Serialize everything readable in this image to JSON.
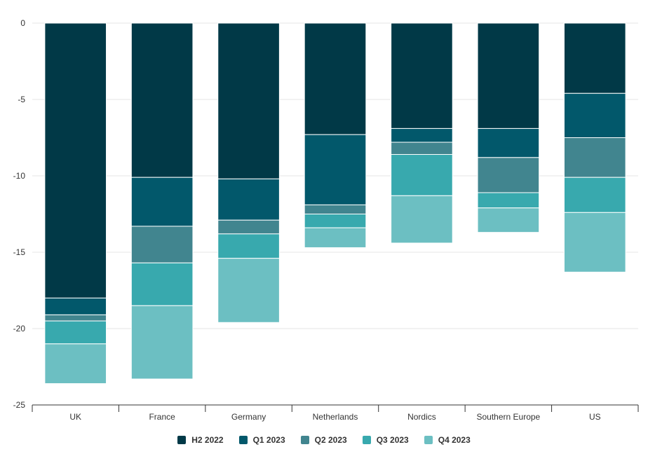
{
  "chart_data": {
    "type": "bar",
    "stacked": true,
    "title": "",
    "xlabel": "",
    "ylabel": "",
    "categories": [
      "UK",
      "France",
      "Germany",
      "Netherlands",
      "Nordics",
      "Southern Europe",
      "US"
    ],
    "ylim": [
      -25,
      0
    ],
    "yticks": [
      0,
      -5,
      -10,
      -15,
      -20,
      -25
    ],
    "grid": true,
    "legend_position": "bottom",
    "series": [
      {
        "name": "H2 2022",
        "color": "#013947",
        "values": [
          -18.0,
          -10.1,
          -10.2,
          -7.3,
          -6.9,
          -6.9,
          -4.6
        ]
      },
      {
        "name": "Q1 2023",
        "color": "#02586B",
        "values": [
          -1.1,
          -3.2,
          -2.7,
          -4.6,
          -0.9,
          -1.9,
          -2.9
        ]
      },
      {
        "name": "Q2 2023",
        "color": "#41858F",
        "values": [
          -0.4,
          -2.4,
          -0.9,
          -0.6,
          -0.8,
          -2.3,
          -2.6
        ]
      },
      {
        "name": "Q3 2023",
        "color": "#38A9AE",
        "values": [
          -1.5,
          -2.8,
          -1.6,
          -0.9,
          -2.7,
          -1.0,
          -2.3
        ]
      },
      {
        "name": "Q4 2023",
        "color": "#6CBFC2",
        "values": [
          -2.6,
          -4.8,
          -4.2,
          -1.3,
          -3.1,
          -1.6,
          -3.9
        ]
      }
    ]
  }
}
